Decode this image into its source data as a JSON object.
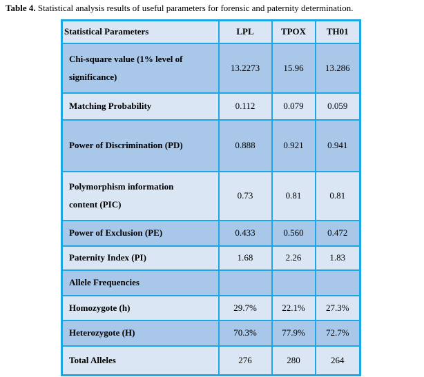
{
  "title": {
    "label": "Table 4.",
    "text": " Statistical analysis results of useful parameters for forensic and paternity determination."
  },
  "colors": {
    "border": "#1ba7e3",
    "row_dark": "#a9c7e8",
    "row_light": "#dae6f3",
    "text": "#000000"
  },
  "table": {
    "headers": [
      "Statistical Parameters",
      "LPL",
      "TPOX",
      "TH01"
    ],
    "rows": [
      {
        "param": "Chi-square value (1% level of significance)",
        "values": [
          "13.2273",
          "15.96",
          "13.286"
        ]
      },
      {
        "param": "Matching Probability",
        "values": [
          "0.112",
          "0.079",
          "0.059"
        ]
      },
      {
        "param": "Power of Discrimination (PD)",
        "values": [
          "0.888",
          "0.921",
          "0.941"
        ]
      },
      {
        "param": "Polymorphism information content (PIC)",
        "values": [
          "0.73",
          "0.81",
          "0.81"
        ]
      },
      {
        "param": "Power of Exclusion (PE)",
        "values": [
          "0.433",
          "0.560",
          "0.472"
        ]
      },
      {
        "param": "Paternity Index (PI)",
        "values": [
          "1.68",
          "2.26",
          "1.83"
        ]
      },
      {
        "param": "Allele Frequencies",
        "values": [
          "",
          "",
          ""
        ]
      },
      {
        "param": "Homozygote (h)",
        "values": [
          "29.7%",
          "22.1%",
          "27.3%"
        ]
      },
      {
        "param": "Heterozygote (H)",
        "values": [
          "70.3%",
          "77.9%",
          "72.7%"
        ]
      },
      {
        "param": "Total Alleles",
        "values": [
          "276",
          "280",
          "264"
        ]
      }
    ]
  }
}
